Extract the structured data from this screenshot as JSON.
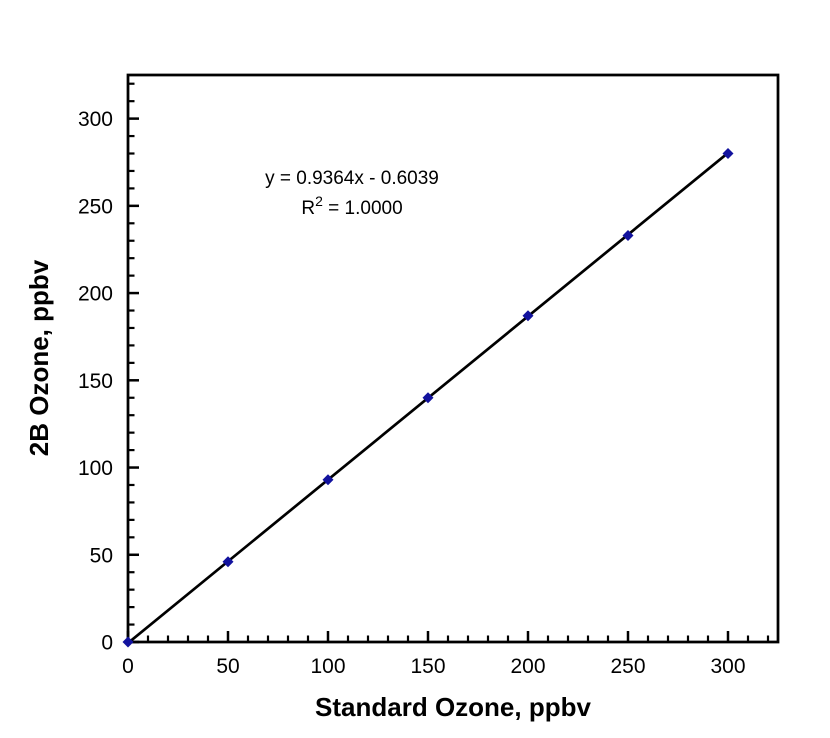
{
  "chart_data": {
    "type": "scatter",
    "xlabel": "Standard Ozone, ppbv",
    "ylabel": "2B Ozone, ppbv",
    "x": [
      0,
      50,
      100,
      150,
      200,
      250,
      300
    ],
    "y": [
      0,
      46,
      93,
      140,
      187,
      233,
      280
    ],
    "trendline": {
      "kind": "linear",
      "slope": 0.9364,
      "intercept": -0.6039,
      "x_start": 0,
      "x_end": 300
    },
    "annotation": {
      "equation": "y = 0.9364x - 0.6039",
      "r2_prefix": "R",
      "r2_sup": "2",
      "r2_value": " = 1.0000"
    },
    "xlim": [
      0,
      325
    ],
    "ylim": [
      0,
      325
    ],
    "x_major_ticks": [
      0,
      50,
      100,
      150,
      200,
      250,
      300
    ],
    "y_major_ticks": [
      0,
      50,
      100,
      150,
      200,
      250,
      300
    ],
    "minor_tick_step": 10,
    "major_tick_step": 50,
    "grid": false,
    "legend": "none",
    "marker": {
      "shape": "diamond",
      "color": "#12129e",
      "size": 11
    },
    "line_color": "#000000",
    "frame_color": "#000000",
    "background": "#ffffff"
  }
}
